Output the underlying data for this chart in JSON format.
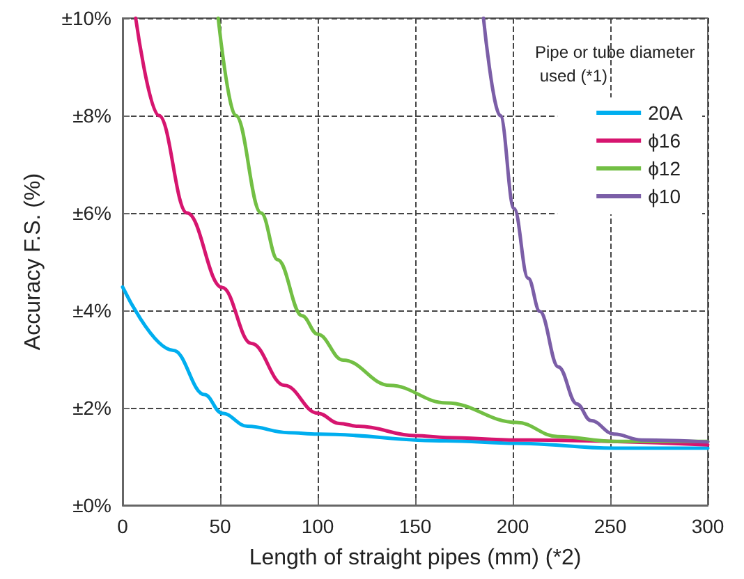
{
  "chart_data": {
    "type": "line",
    "xlabel": "Length of straight pipes (mm) (*2)",
    "ylabel": "Accuracy F.S. (%)",
    "legend_title": "Pipe or tube diameter used (*1)",
    "xlim": [
      0,
      300
    ],
    "xticks": [
      0,
      50,
      100,
      150,
      200,
      250,
      300
    ],
    "ylim": [
      0,
      10
    ],
    "yticks": [
      {
        "value": 0,
        "label": "±0%"
      },
      {
        "value": 2,
        "label": "±2%"
      },
      {
        "value": 4,
        "label": "±4%"
      },
      {
        "value": 6,
        "label": "±6%"
      },
      {
        "value": 8,
        "label": "±8%"
      },
      {
        "value": 10,
        "label": "±10%"
      }
    ],
    "grid": true,
    "legend": "top right",
    "marker": "none",
    "line_style": "solid",
    "series": [
      {
        "name": "20A",
        "color": "#00aeef",
        "x": [
          0,
          26,
          42,
          51,
          64,
          85,
          100,
          166,
          202,
          252,
          300
        ],
        "values": [
          4.48,
          3.18,
          2.27,
          1.89,
          1.62,
          1.49,
          1.46,
          1.32,
          1.27,
          1.17,
          1.17
        ]
      },
      {
        "name": "ϕ16",
        "color": "#d6156f",
        "x": [
          6.7,
          18.6,
          33,
          51,
          66,
          83,
          100,
          111,
          121,
          150,
          166,
          202,
          300
        ],
        "values": [
          10,
          8,
          6,
          4.47,
          3.32,
          2.46,
          1.89,
          1.68,
          1.62,
          1.43,
          1.39,
          1.34,
          1.24
        ]
      },
      {
        "name": "ϕ12",
        "color": "#72bf44",
        "x": [
          49,
          58,
          71,
          79.5,
          92,
          100,
          113,
          137,
          166,
          202,
          223,
          252,
          300
        ],
        "values": [
          10,
          8,
          6,
          5.04,
          3.89,
          3.51,
          2.98,
          2.46,
          2.1,
          1.7,
          1.41,
          1.31,
          1.31
        ]
      },
      {
        "name": "ϕ10",
        "color": "#7b5ea7",
        "x": [
          185,
          193.6,
          200.7,
          207.9,
          213.9,
          223.4,
          232.9,
          240,
          252,
          266,
          300
        ],
        "values": [
          10,
          8,
          6.09,
          4.66,
          3.98,
          2.84,
          2.08,
          1.74,
          1.46,
          1.34,
          1.3
        ]
      }
    ]
  }
}
